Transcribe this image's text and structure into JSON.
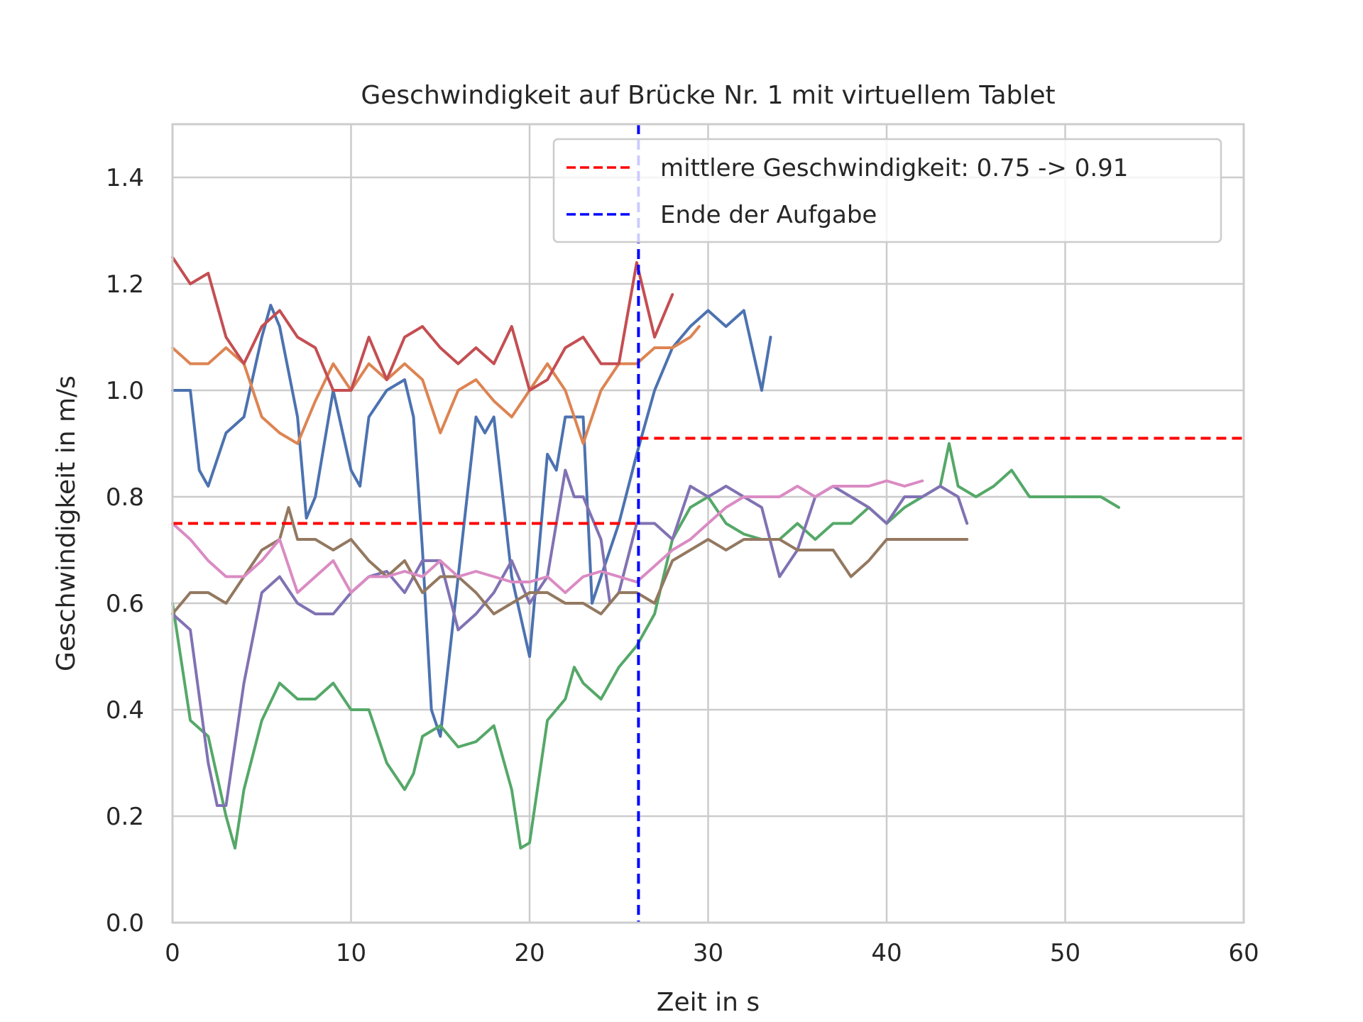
{
  "chart_data": {
    "type": "line",
    "title": "Geschwindigkeit auf Brücke Nr. 1 mit virtuellem Tablet",
    "xlabel": "Zeit in s",
    "ylabel": "Geschwindigkeit in m/s",
    "xlim": [
      0,
      60
    ],
    "ylim": [
      0,
      1.5
    ],
    "xticks": [
      0,
      10,
      20,
      30,
      40,
      50,
      60
    ],
    "xtick_labels": [
      "0",
      "10",
      "20",
      "30",
      "40",
      "50",
      "60"
    ],
    "yticks": [
      0.0,
      0.2,
      0.4,
      0.6,
      0.8,
      1.0,
      1.2,
      1.4
    ],
    "ytick_labels": [
      "0.0",
      "0.2",
      "0.4",
      "0.6",
      "0.8",
      "1.0",
      "1.2",
      "1.4"
    ],
    "grid": true,
    "legend_position": "top-right",
    "legend": [
      {
        "label": "mittlere Geschwindigkeit: 0.75 -> 0.91",
        "color": "#ff0000",
        "style": "dashed"
      },
      {
        "label": "Ende der Aufgabe",
        "color": "#0000ff",
        "style": "dashed"
      }
    ],
    "reference_lines": {
      "mean_before": {
        "x": [
          0,
          26.1
        ],
        "y": 0.75,
        "color": "#ff0000"
      },
      "mean_after": {
        "x": [
          26.1,
          60
        ],
        "y": 0.91,
        "color": "#ff0000"
      },
      "task_end": {
        "x": 26.1,
        "color": "#0000ff"
      }
    },
    "series": [
      {
        "color": "#4c72b0",
        "x": [
          0,
          1,
          1.5,
          2,
          3,
          4,
          5,
          5.5,
          6,
          7,
          7.5,
          8,
          9,
          10,
          10.5,
          11,
          12,
          13,
          13.5,
          14,
          14.5,
          15,
          16,
          17,
          17.5,
          18,
          18.5,
          19,
          20,
          21,
          21.5,
          22,
          23,
          23.5,
          24,
          25,
          26,
          27,
          28,
          29,
          30,
          31,
          32,
          33,
          33.5
        ],
        "y": [
          1.0,
          1.0,
          0.85,
          0.82,
          0.92,
          0.95,
          1.1,
          1.16,
          1.12,
          0.95,
          0.76,
          0.8,
          1.0,
          0.85,
          0.82,
          0.95,
          1.0,
          1.02,
          0.95,
          0.7,
          0.4,
          0.35,
          0.65,
          0.95,
          0.92,
          0.95,
          0.8,
          0.65,
          0.5,
          0.88,
          0.85,
          0.95,
          0.95,
          0.6,
          0.65,
          0.75,
          0.88,
          1.0,
          1.08,
          1.12,
          1.15,
          1.12,
          1.15,
          1.0,
          1.1
        ]
      },
      {
        "color": "#dd8452",
        "x": [
          0,
          1,
          2,
          3,
          4,
          5,
          6,
          7,
          8,
          9,
          10,
          11,
          12,
          13,
          14,
          15,
          16,
          17,
          18,
          19,
          20,
          21,
          22,
          23,
          24,
          25,
          26,
          27,
          28,
          29,
          29.5
        ],
        "y": [
          1.08,
          1.05,
          1.05,
          1.08,
          1.05,
          0.95,
          0.92,
          0.9,
          0.98,
          1.05,
          1.0,
          1.05,
          1.02,
          1.05,
          1.02,
          0.92,
          1.0,
          1.02,
          0.98,
          0.95,
          1.0,
          1.05,
          1.0,
          0.9,
          1.0,
          1.05,
          1.05,
          1.08,
          1.08,
          1.1,
          1.12
        ]
      },
      {
        "color": "#55a868",
        "x": [
          0,
          1,
          2,
          3,
          3.5,
          4,
          5,
          6,
          7,
          8,
          9,
          10,
          11,
          12,
          13,
          13.5,
          14,
          15,
          16,
          17,
          18,
          19,
          19.5,
          20,
          21,
          22,
          22.5,
          23,
          24,
          25,
          26,
          27,
          28,
          29,
          30,
          31,
          32,
          33,
          34,
          35,
          36,
          37,
          38,
          39,
          40,
          41,
          42,
          43,
          43.5,
          44,
          45,
          46,
          47,
          48,
          49,
          50,
          51,
          52,
          53
        ],
        "y": [
          0.6,
          0.38,
          0.35,
          0.2,
          0.14,
          0.25,
          0.38,
          0.45,
          0.42,
          0.42,
          0.45,
          0.4,
          0.4,
          0.3,
          0.25,
          0.28,
          0.35,
          0.37,
          0.33,
          0.34,
          0.37,
          0.25,
          0.14,
          0.15,
          0.38,
          0.42,
          0.48,
          0.45,
          0.42,
          0.48,
          0.52,
          0.58,
          0.72,
          0.78,
          0.8,
          0.75,
          0.73,
          0.72,
          0.72,
          0.75,
          0.72,
          0.75,
          0.75,
          0.78,
          0.75,
          0.78,
          0.8,
          0.82,
          0.9,
          0.82,
          0.8,
          0.82,
          0.85,
          0.8,
          0.8,
          0.8,
          0.8,
          0.8,
          0.78
        ]
      },
      {
        "color": "#c44e52",
        "x": [
          0,
          1,
          2,
          3,
          4,
          5,
          6,
          7,
          8,
          9,
          10,
          11,
          12,
          13,
          14,
          15,
          16,
          17,
          18,
          19,
          20,
          21,
          22,
          23,
          24,
          25,
          26,
          27,
          28
        ],
        "y": [
          1.25,
          1.2,
          1.22,
          1.1,
          1.05,
          1.12,
          1.15,
          1.1,
          1.08,
          1.0,
          1.0,
          1.1,
          1.02,
          1.1,
          1.12,
          1.08,
          1.05,
          1.08,
          1.05,
          1.12,
          1.0,
          1.02,
          1.08,
          1.1,
          1.05,
          1.05,
          1.24,
          1.1,
          1.18
        ]
      },
      {
        "color": "#8172b3",
        "x": [
          0,
          1,
          2,
          2.5,
          3,
          4,
          5,
          6,
          7,
          8,
          9,
          10,
          11,
          12,
          13,
          14,
          15,
          16,
          17,
          18,
          19,
          20,
          21,
          22,
          22.5,
          23,
          24,
          24.5,
          25,
          26,
          27,
          28,
          29,
          30,
          31,
          32,
          33,
          34,
          35,
          36,
          37,
          38,
          39,
          40,
          41,
          42,
          43,
          44,
          44.5
        ],
        "y": [
          0.58,
          0.55,
          0.3,
          0.22,
          0.22,
          0.45,
          0.62,
          0.65,
          0.6,
          0.58,
          0.58,
          0.62,
          0.65,
          0.66,
          0.62,
          0.68,
          0.68,
          0.55,
          0.58,
          0.62,
          0.68,
          0.6,
          0.65,
          0.85,
          0.8,
          0.8,
          0.72,
          0.6,
          0.62,
          0.75,
          0.75,
          0.72,
          0.82,
          0.8,
          0.82,
          0.8,
          0.78,
          0.65,
          0.7,
          0.8,
          0.82,
          0.8,
          0.78,
          0.75,
          0.8,
          0.8,
          0.82,
          0.8,
          0.75
        ]
      },
      {
        "color": "#937860",
        "x": [
          0,
          1,
          2,
          3,
          4,
          5,
          6,
          6.5,
          7,
          8,
          9,
          10,
          11,
          12,
          13,
          14,
          15,
          16,
          17,
          18,
          19,
          20,
          21,
          22,
          23,
          24,
          25,
          26,
          27,
          28,
          29,
          30,
          31,
          32,
          33,
          34,
          35,
          36,
          37,
          38,
          39,
          40,
          41,
          42,
          43,
          44,
          44.5
        ],
        "y": [
          0.58,
          0.62,
          0.62,
          0.6,
          0.65,
          0.7,
          0.72,
          0.78,
          0.72,
          0.72,
          0.7,
          0.72,
          0.68,
          0.65,
          0.68,
          0.62,
          0.65,
          0.65,
          0.62,
          0.58,
          0.6,
          0.62,
          0.62,
          0.6,
          0.6,
          0.58,
          0.62,
          0.62,
          0.6,
          0.68,
          0.7,
          0.72,
          0.7,
          0.72,
          0.72,
          0.72,
          0.7,
          0.7,
          0.7,
          0.65,
          0.68,
          0.72,
          0.72,
          0.72,
          0.72,
          0.72,
          0.72
        ]
      },
      {
        "color": "#da8bc3",
        "x": [
          0,
          1,
          2,
          3,
          4,
          5,
          6,
          7,
          8,
          9,
          10,
          11,
          12,
          13,
          14,
          15,
          16,
          17,
          18,
          19,
          20,
          21,
          22,
          23,
          24,
          25,
          26,
          27,
          28,
          29,
          30,
          31,
          32,
          33,
          34,
          35,
          36,
          37,
          38,
          39,
          40,
          41,
          42
        ],
        "y": [
          0.75,
          0.72,
          0.68,
          0.65,
          0.65,
          0.68,
          0.72,
          0.62,
          0.65,
          0.68,
          0.62,
          0.65,
          0.65,
          0.66,
          0.65,
          0.68,
          0.65,
          0.66,
          0.65,
          0.64,
          0.64,
          0.65,
          0.62,
          0.65,
          0.66,
          0.65,
          0.64,
          0.67,
          0.7,
          0.72,
          0.75,
          0.78,
          0.8,
          0.8,
          0.8,
          0.82,
          0.8,
          0.82,
          0.82,
          0.82,
          0.83,
          0.82,
          0.83
        ]
      }
    ]
  }
}
